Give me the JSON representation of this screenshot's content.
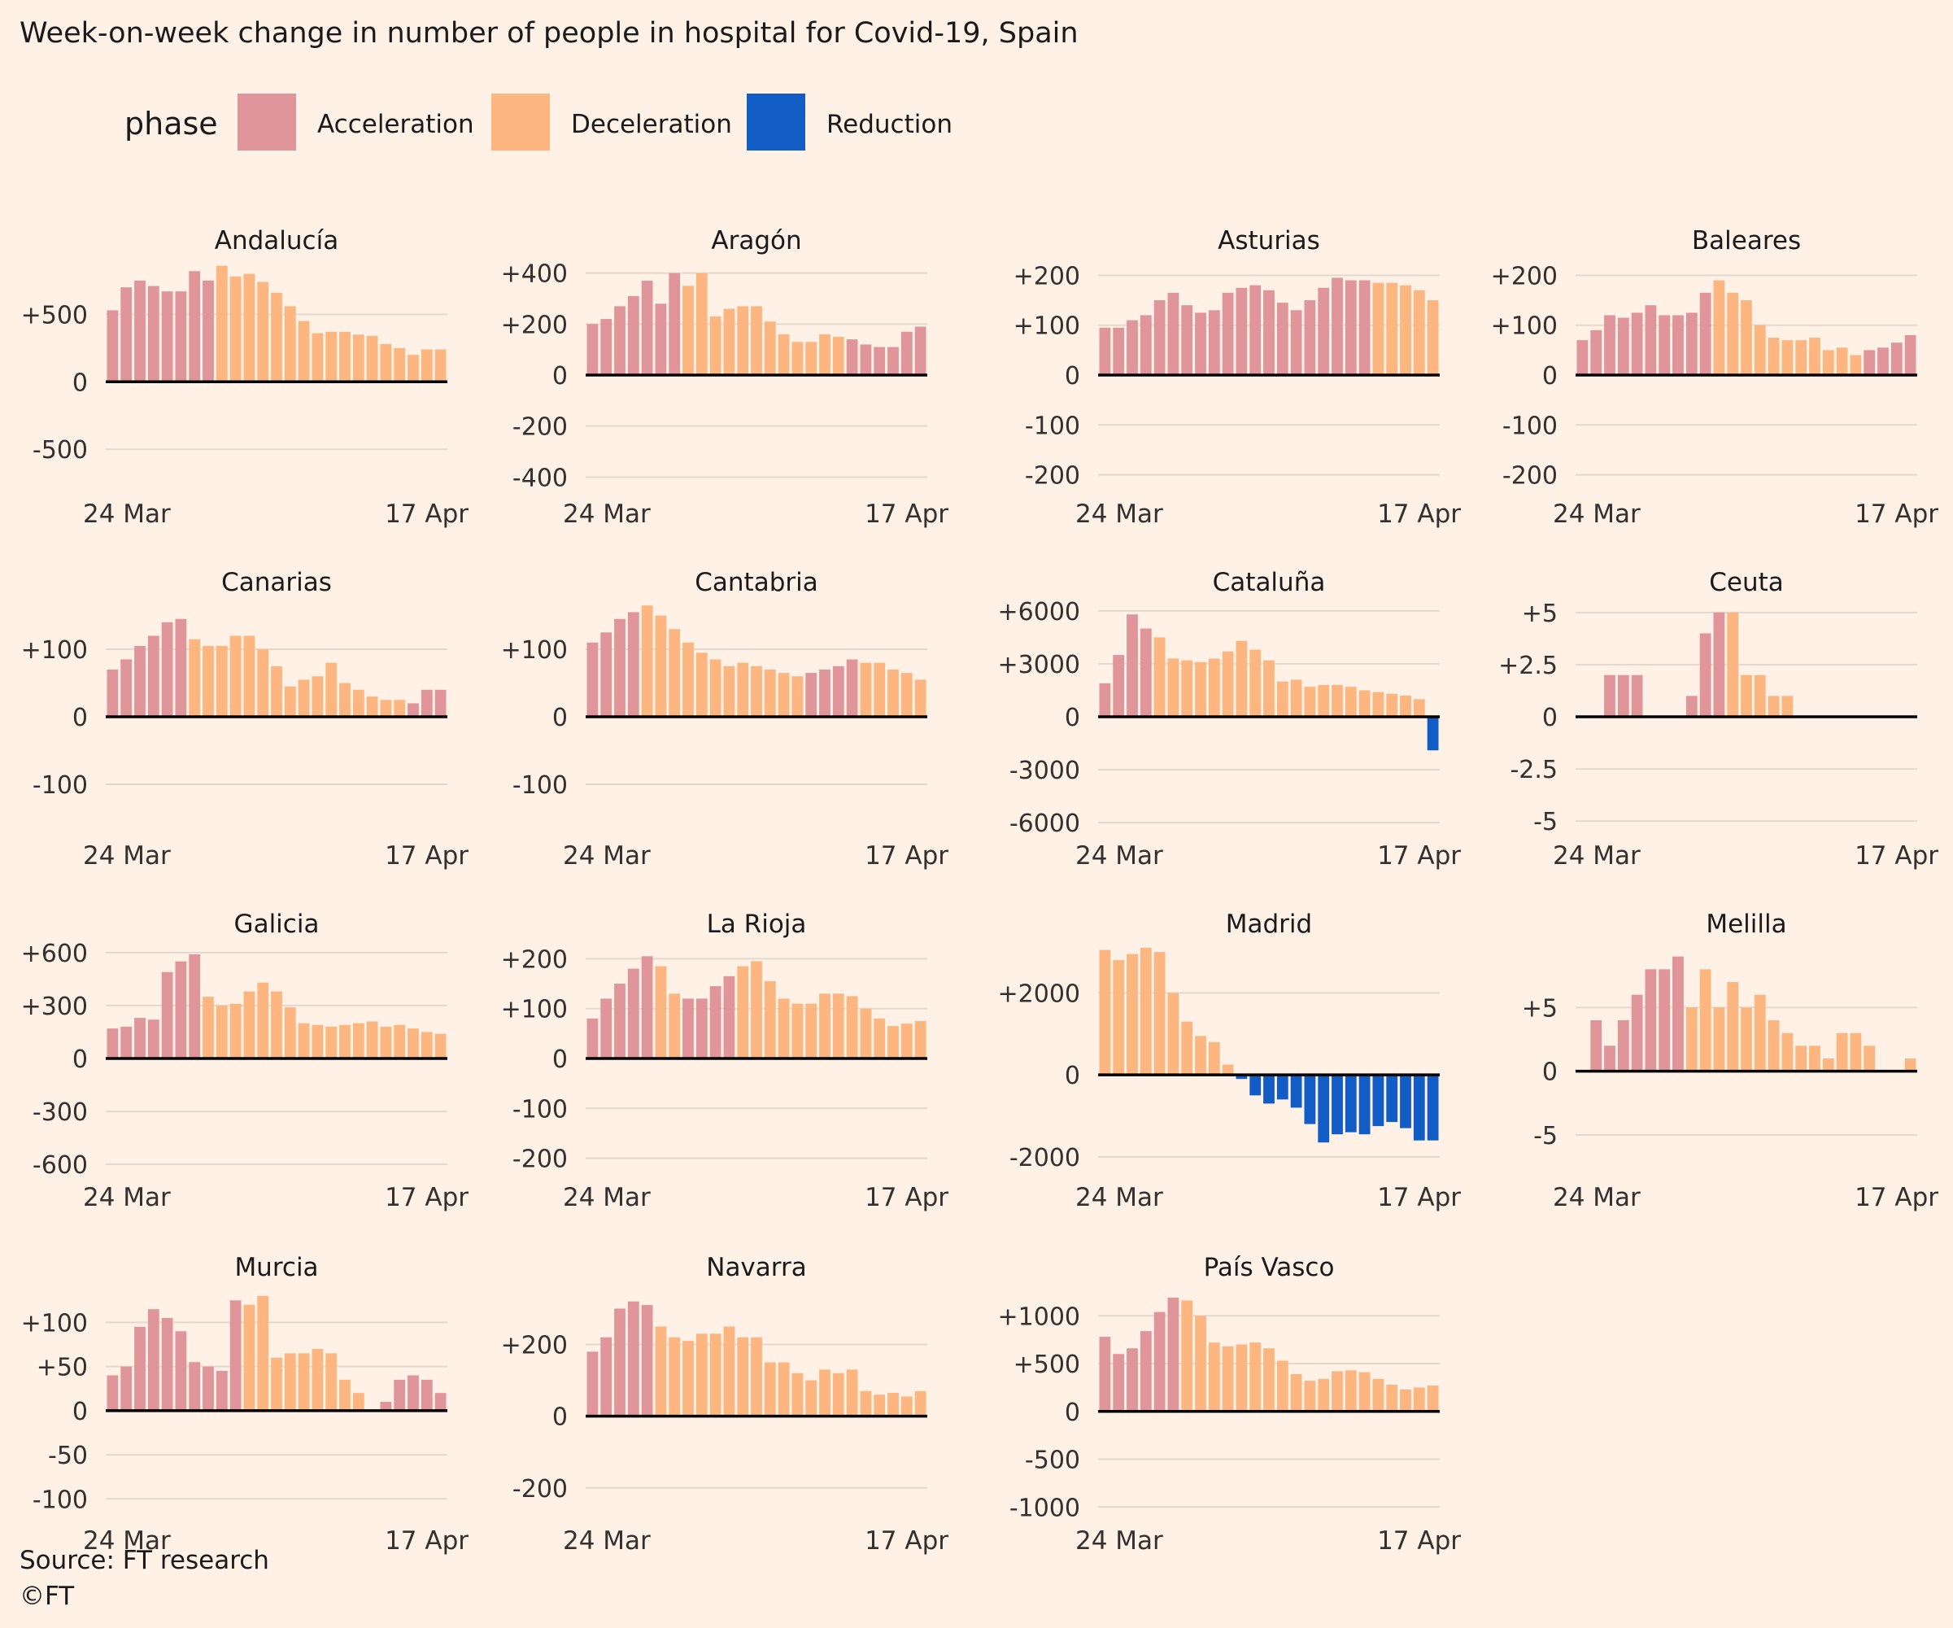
{
  "chart_data": {
    "type": "bar",
    "title": "Week-on-week change in number of people in hospital for Covid-19, Spain",
    "source": "Source: FT research",
    "copyright": "©FT",
    "legend": {
      "title": "phase",
      "placement": "top-left",
      "entries": [
        {
          "key": "A",
          "label": "Acceleration",
          "color": "#E0959A"
        },
        {
          "key": "D",
          "label": "Deceleration",
          "color": "#FDB680"
        },
        {
          "key": "R",
          "label": "Reduction",
          "color": "#125DC5"
        }
      ]
    },
    "x_tick_labels": [
      "24 Mar",
      "17 Apr"
    ],
    "x_range": [
      "24 Mar",
      "17 Apr"
    ],
    "gridlines": true,
    "panels": [
      {
        "name": "Andalucía",
        "ylim": [
          -800,
          900
        ],
        "yticks": [
          500,
          0,
          -500
        ],
        "ytick_labels": [
          "+500",
          "0",
          "-500"
        ],
        "values": [
          530,
          700,
          750,
          710,
          670,
          670,
          820,
          750,
          860,
          780,
          800,
          740,
          660,
          560,
          450,
          360,
          370,
          370,
          350,
          340,
          280,
          250,
          200,
          240,
          240
        ],
        "phases": "AAAAAAAADDDDDDDDDDDDDDDDD"
      },
      {
        "name": "Aragón",
        "ylim": [
          -450,
          450
        ],
        "yticks": [
          400,
          200,
          0,
          -200,
          -400
        ],
        "ytick_labels": [
          "+400",
          "+200",
          "0",
          "-200",
          "-400"
        ],
        "values": [
          200,
          220,
          270,
          310,
          370,
          280,
          400,
          350,
          400,
          230,
          260,
          270,
          270,
          210,
          160,
          130,
          130,
          160,
          150,
          140,
          120,
          110,
          110,
          170,
          190
        ],
        "phases": "AAAAAAADDDDDDDDDDDDAAAAAA"
      },
      {
        "name": "Asturias",
        "ylim": [
          -230,
          230
        ],
        "yticks": [
          200,
          100,
          0,
          -100,
          -200
        ],
        "ytick_labels": [
          "+200",
          "+100",
          "0",
          "-100",
          "-200"
        ],
        "values": [
          95,
          95,
          110,
          120,
          150,
          165,
          140,
          125,
          130,
          165,
          175,
          180,
          170,
          145,
          130,
          150,
          175,
          195,
          190,
          190,
          185,
          185,
          180,
          170,
          150
        ],
        "phases": "AAAAAAAAAAAAAAAAAAAADDDDD"
      },
      {
        "name": "Baleares",
        "ylim": [
          -230,
          230
        ],
        "yticks": [
          200,
          100,
          0,
          -100,
          -200
        ],
        "ytick_labels": [
          "+200",
          "+100",
          "0",
          "-100",
          "-200"
        ],
        "values": [
          70,
          90,
          120,
          115,
          125,
          140,
          120,
          120,
          125,
          165,
          190,
          165,
          150,
          100,
          75,
          70,
          70,
          75,
          50,
          55,
          40,
          50,
          55,
          65,
          80
        ],
        "phases": "AAAAAAAAAADDDDDDDDDDDAAAA"
      },
      {
        "name": "Canarias",
        "ylim": [
          -170,
          170
        ],
        "yticks": [
          100,
          0,
          -100
        ],
        "ytick_labels": [
          "+100",
          "0",
          "-100"
        ],
        "values": [
          70,
          85,
          105,
          120,
          140,
          145,
          115,
          105,
          105,
          120,
          120,
          100,
          75,
          45,
          55,
          60,
          80,
          50,
          40,
          30,
          25,
          25,
          20,
          40,
          40
        ],
        "phases": "AAAAAADDDDDDDDDDDDDDDDAAA"
      },
      {
        "name": "Cantabria",
        "ylim": [
          -170,
          170
        ],
        "yticks": [
          100,
          0,
          -100
        ],
        "ytick_labels": [
          "+100",
          "0",
          "-100"
        ],
        "values": [
          110,
          125,
          145,
          155,
          165,
          150,
          130,
          110,
          95,
          85,
          75,
          80,
          75,
          70,
          65,
          60,
          65,
          70,
          75,
          85,
          80,
          80,
          70,
          65,
          55
        ],
        "phases": "AAAADDDDDDDDDDDDAAAADDDDD"
      },
      {
        "name": "Cataluña",
        "ylim": [
          -6500,
          6500
        ],
        "yticks": [
          6000,
          3000,
          0,
          -3000,
          -6000
        ],
        "ytick_labels": [
          "+6000",
          "+3000",
          "0",
          "-3000",
          "-6000"
        ],
        "values": [
          1900,
          3500,
          5800,
          5000,
          4500,
          3300,
          3200,
          3100,
          3300,
          3700,
          4300,
          3800,
          3200,
          2000,
          2100,
          1700,
          1800,
          1800,
          1700,
          1500,
          1400,
          1300,
          1200,
          1000,
          -1900
        ],
        "phases": "AAAADDDDDDDDDDDDDDDDDDDDR"
      },
      {
        "name": "Ceuta",
        "ylim": [
          -5.5,
          5.5
        ],
        "yticks": [
          5,
          2.5,
          0,
          -2.5,
          -5
        ],
        "ytick_labels": [
          "+5",
          "+2.5",
          "0",
          "-2.5",
          "-5"
        ],
        "values": [
          0,
          0,
          2,
          2,
          2,
          0,
          0,
          0,
          1,
          4,
          5,
          5,
          2,
          2,
          1,
          1,
          0,
          0,
          0,
          0,
          0,
          0,
          0,
          0,
          0
        ],
        "phases": "AAAAAAAAAAADDDDDDDDDDDDDD"
      },
      {
        "name": "Galicia",
        "ylim": [
          -650,
          650
        ],
        "yticks": [
          600,
          300,
          0,
          -300,
          -600
        ],
        "ytick_labels": [
          "+600",
          "+300",
          "0",
          "-300",
          "-600"
        ],
        "values": [
          170,
          180,
          230,
          220,
          490,
          550,
          590,
          350,
          300,
          310,
          380,
          430,
          380,
          290,
          200,
          190,
          180,
          190,
          200,
          210,
          180,
          190,
          170,
          150,
          140
        ],
        "phases": "AAAAAAADDDDDDDDDDDDDDDDDD"
      },
      {
        "name": "La Rioja",
        "ylim": [
          -230,
          230
        ],
        "yticks": [
          200,
          100,
          0,
          -100,
          -200
        ],
        "ytick_labels": [
          "+200",
          "+100",
          "0",
          "-100",
          "-200"
        ],
        "values": [
          80,
          120,
          150,
          180,
          205,
          185,
          130,
          120,
          120,
          145,
          165,
          185,
          195,
          155,
          120,
          110,
          110,
          130,
          130,
          125,
          100,
          80,
          65,
          70,
          75
        ],
        "phases": "AAAAADDAAAADDDDDDDDDDDDDD"
      },
      {
        "name": "Madrid",
        "ylim": [
          -2400,
          3200
        ],
        "yticks": [
          2000,
          0,
          -2000
        ],
        "ytick_labels": [
          "+2000",
          "0",
          "-2000"
        ],
        "values": [
          3050,
          2800,
          2950,
          3100,
          3000,
          2000,
          1300,
          950,
          800,
          250,
          -100,
          -500,
          -700,
          -600,
          -800,
          -1200,
          -1650,
          -1450,
          -1400,
          -1450,
          -1250,
          -1150,
          -1300,
          -1600,
          -1600
        ],
        "phases": "DDDDDDDDDDRRRRRRRRRRRRRRR"
      },
      {
        "name": "Melilla",
        "ylim": [
          -8,
          10
        ],
        "yticks": [
          5,
          0,
          -5
        ],
        "ytick_labels": [
          "+5",
          "0",
          "-5"
        ],
        "values": [
          0,
          4,
          2,
          4,
          6,
          8,
          8,
          9,
          5,
          8,
          5,
          7,
          5,
          6,
          4,
          3,
          2,
          2,
          1,
          3,
          3,
          2,
          0,
          0,
          1
        ],
        "phases": "AAAAAAAADDDDDDDDDDDDDDDDD"
      },
      {
        "name": "Murcia",
        "ylim": [
          -120,
          140
        ],
        "yticks": [
          100,
          50,
          0,
          -50,
          -100
        ],
        "ytick_labels": [
          "+100",
          "+50",
          "0",
          "-50",
          "-100"
        ],
        "values": [
          40,
          50,
          95,
          115,
          105,
          90,
          55,
          50,
          45,
          125,
          120,
          130,
          60,
          65,
          65,
          70,
          65,
          35,
          20,
          0,
          10,
          35,
          40,
          35,
          20
        ],
        "phases": "AAAAAAAAAADDDDDDDDDDAAAAA"
      },
      {
        "name": "Navarra",
        "ylim": [
          -280,
          360
        ],
        "yticks": [
          200,
          0,
          -200
        ],
        "ytick_labels": [
          "+200",
          "0",
          "-200"
        ],
        "values": [
          180,
          220,
          300,
          320,
          310,
          250,
          220,
          210,
          230,
          230,
          250,
          220,
          220,
          150,
          150,
          120,
          100,
          130,
          120,
          130,
          70,
          60,
          65,
          55,
          70
        ],
        "phases": "AAAAADDDDDDDDDDDDDDDDDDDD"
      },
      {
        "name": "País Vasco",
        "ylim": [
          -1100,
          1300
        ],
        "yticks": [
          1000,
          500,
          0,
          -500,
          -1000
        ],
        "ytick_labels": [
          "+1000",
          "+500",
          "0",
          "-500",
          "-1000"
        ],
        "values": [
          780,
          600,
          660,
          840,
          1040,
          1190,
          1160,
          1000,
          720,
          680,
          700,
          720,
          660,
          530,
          390,
          320,
          340,
          420,
          430,
          410,
          340,
          280,
          230,
          250,
          270
        ],
        "phases": "AAAAAADDDDDDDDDDDDDDDDDDD"
      }
    ]
  }
}
